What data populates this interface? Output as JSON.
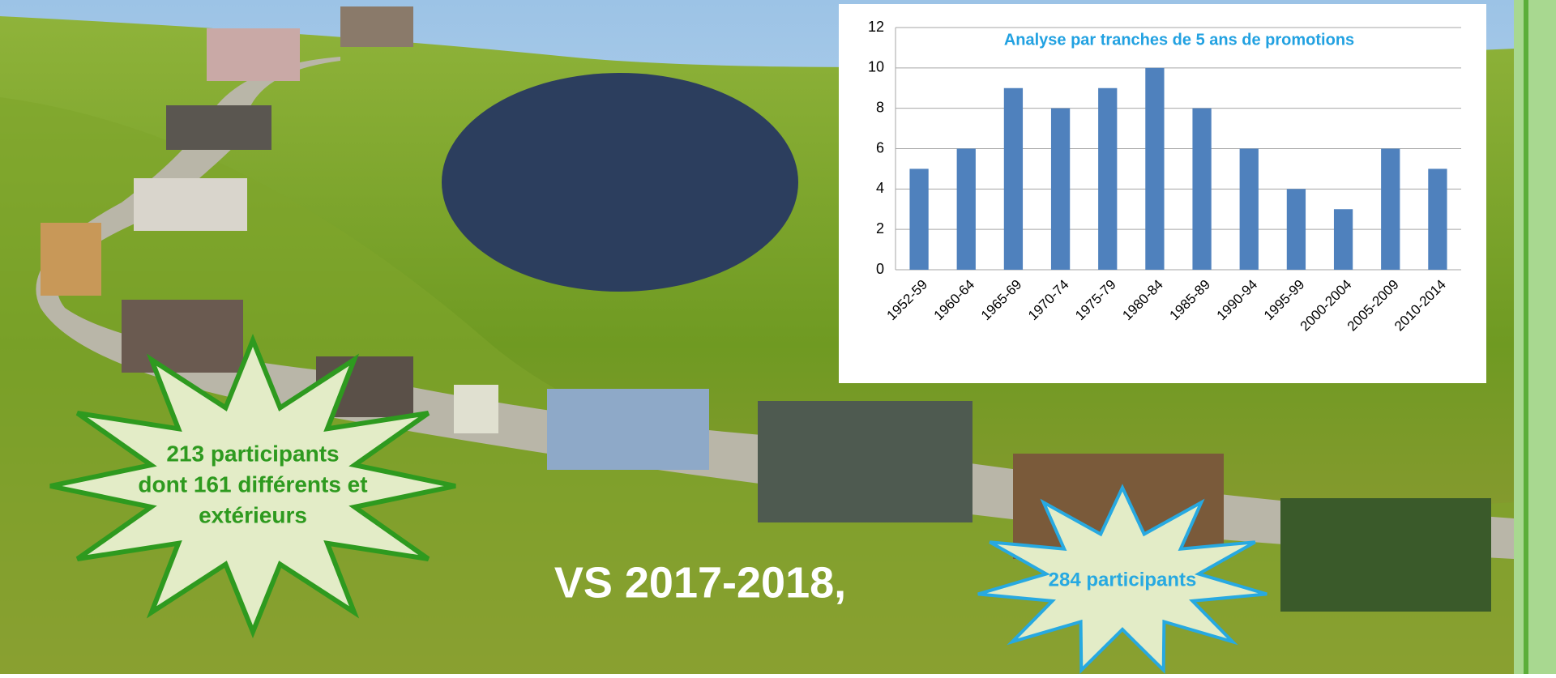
{
  "chart_data": {
    "type": "bar",
    "title": "Analyse par tranches de 5 ans de promotions",
    "categories": [
      "1952-59",
      "1960-64",
      "1965-69",
      "1970-74",
      "1975-79",
      "1980-84",
      "1985-89",
      "1990-94",
      "1995-99",
      "2000-2004",
      "2005-2009",
      "2010-2014"
    ],
    "values": [
      5,
      6,
      9,
      8,
      9,
      10,
      8,
      6,
      4,
      3,
      6,
      5
    ],
    "color": "#4f81bd",
    "ylim": [
      0,
      12
    ],
    "yticks": [
      0,
      2,
      4,
      6,
      8,
      10,
      12
    ],
    "grid": true
  },
  "callouts": [
    {
      "lines": [
        "213 participants",
        "dont 161 différents et",
        "extérieurs"
      ]
    },
    {
      "lines": [
        "284 participants"
      ]
    }
  ],
  "caption": "VS 2017-2018,"
}
